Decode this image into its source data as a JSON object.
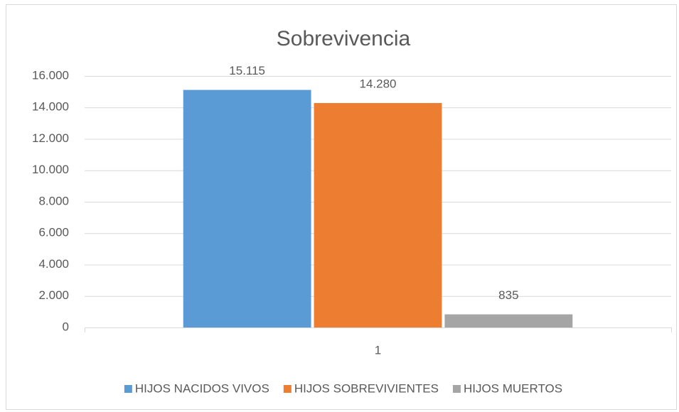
{
  "chart_data": {
    "type": "bar",
    "title": "Sobrevivencia",
    "categories": [
      "1"
    ],
    "series": [
      {
        "name": "HIJOS NACIDOS VIVOS",
        "color": "#5b9bd5",
        "values": [
          15115
        ],
        "value_labels": [
          "15.115"
        ]
      },
      {
        "name": "HIJOS SOBREVIVIENTES",
        "color": "#ed7d31",
        "values": [
          14280
        ],
        "value_labels": [
          "14.280"
        ]
      },
      {
        "name": "HIJOS MUERTOS",
        "color": "#a5a5a5",
        "values": [
          835
        ],
        "value_labels": [
          "835"
        ]
      }
    ],
    "ylim": [
      0,
      16000
    ],
    "yticks": [
      0,
      {
        "value": 2000,
        "label": "2.000"
      },
      {
        "value": 4000,
        "label": "4.000"
      },
      {
        "value": 6000,
        "label": "6.000"
      },
      {
        "value": 8000,
        "label": "8.000"
      },
      {
        "value": 10000,
        "label": "10.000"
      },
      {
        "value": 12000,
        "label": "12.000"
      },
      {
        "value": 14000,
        "label": "14.000"
      },
      {
        "value": 16000,
        "label": "16.000"
      }
    ],
    "grid": true,
    "legend": "bottom"
  }
}
